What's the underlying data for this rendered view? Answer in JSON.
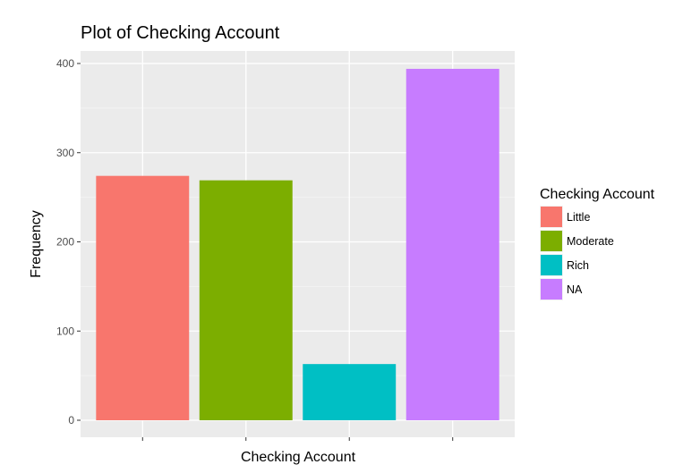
{
  "chart_data": {
    "type": "bar",
    "title": "Plot of Checking Account",
    "xlabel": "Checking Account",
    "ylabel": "Frequency",
    "categories": [
      "Little",
      "Moderate",
      "Rich",
      "NA"
    ],
    "values": [
      274,
      269,
      63,
      394
    ],
    "colors": [
      "#F8766D",
      "#7CAE00",
      "#00BFC4",
      "#C77CFF"
    ],
    "ylim": [
      0,
      420
    ],
    "yticks": [
      0,
      100,
      200,
      300,
      400
    ],
    "x_tick_labels_shown": false,
    "grid": true,
    "panel_background": "#EBEBEB",
    "legend": {
      "title": "Checking Account",
      "position": "right",
      "entries": [
        "Little",
        "Moderate",
        "Rich",
        "NA"
      ]
    }
  }
}
